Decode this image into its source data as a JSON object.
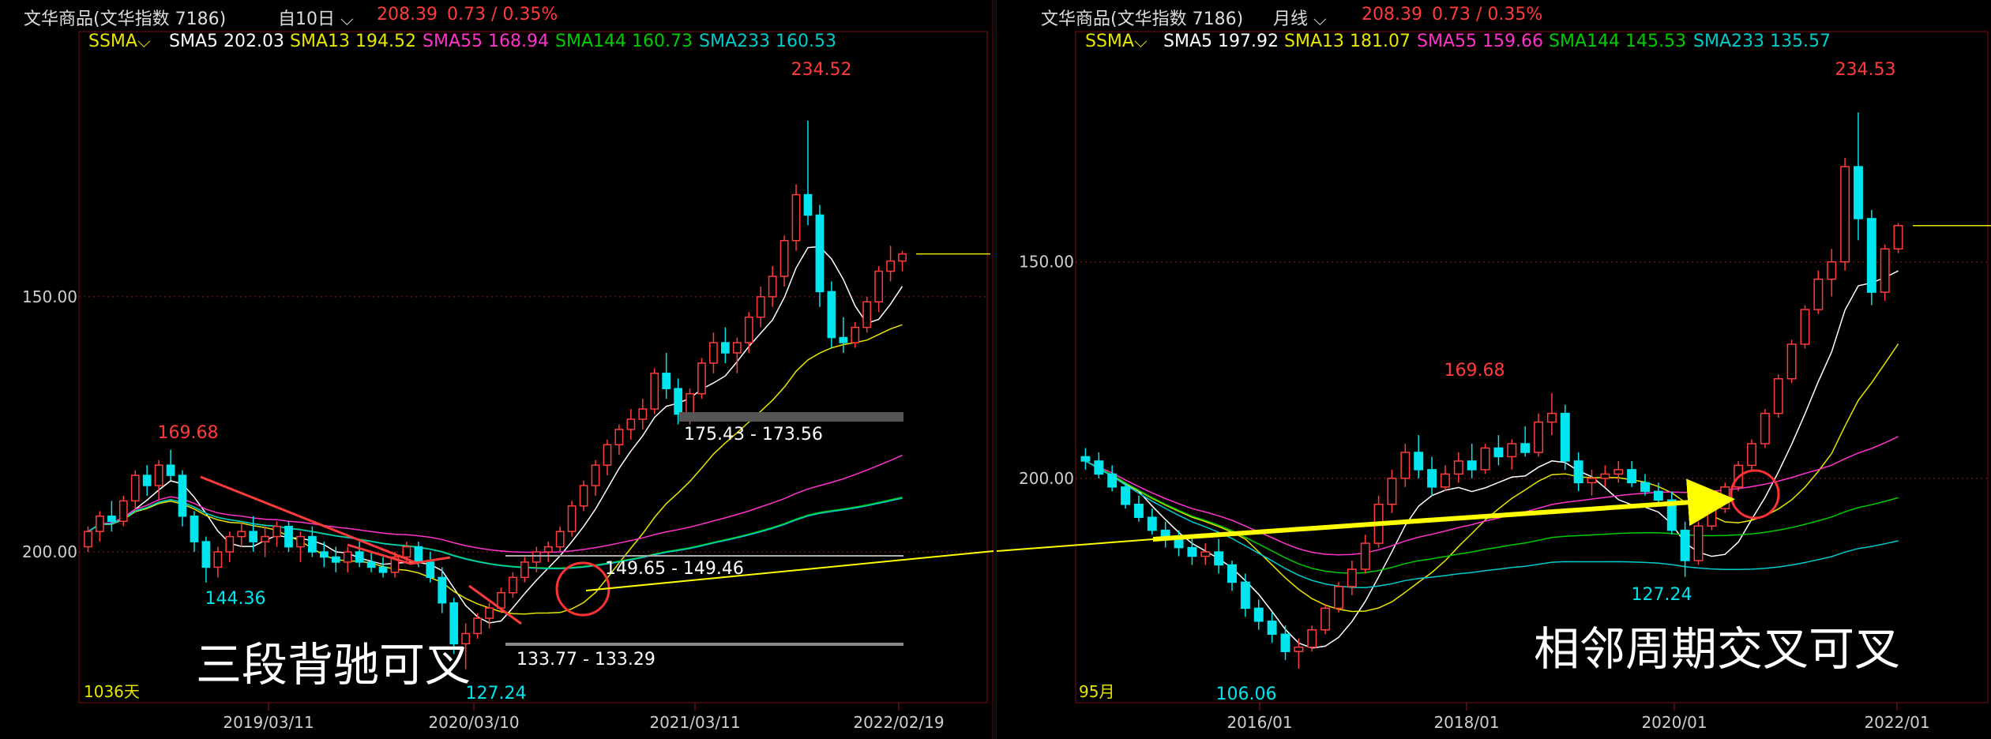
{
  "left": {
    "header": {
      "name": "文华商品(文华指数 7186)",
      "period": "自10日",
      "price": "208.39",
      "change": "0.73 / 0.35%"
    },
    "ma": {
      "label": "SSMA",
      "sma5": "SMA5 202.03",
      "sma13": "SMA13 194.52",
      "sma55": "SMA55 168.94",
      "sma144": "SMA144 160.73",
      "sma233": "SMA233 160.53"
    },
    "yticks": [
      "200.00",
      "150.00"
    ],
    "xticks": [
      "2019/03/11",
      "2020/03/10",
      "2021/03/11",
      "2022/02/19"
    ],
    "labels": {
      "high": "169.68",
      "low1": "144.36",
      "low2": "127.24",
      "peak": "234.52",
      "range1": "175.43 - 173.56",
      "range2": "149.65 - 149.46",
      "range3": "133.77 - 133.29",
      "count": "1036天"
    },
    "caption": "三段背驰可叉"
  },
  "right": {
    "header": {
      "name": "文华商品(文华指数 7186)",
      "period": "月线",
      "price": "208.39",
      "change": "0.73 / 0.35%"
    },
    "ma": {
      "label": "SSMA",
      "sma5": "SMA5 197.92",
      "sma13": "SMA13 181.07",
      "sma55": "SMA55 159.66",
      "sma144": "SMA144 145.53",
      "sma233": "SMA233 135.57"
    },
    "yticks": [
      "200.00",
      "150.00"
    ],
    "xticks": [
      "2016/01",
      "2018/01",
      "2020/01",
      "2022/01"
    ],
    "labels": {
      "high": "169.68",
      "low1": "106.06",
      "low2": "127.24",
      "peak": "234.53",
      "count": "95月"
    },
    "caption": "相邻周期交叉可叉"
  },
  "colors": {
    "up": "#ff3b3b",
    "down": "#00e5ee",
    "sma5": "#ffffff",
    "sma13": "#e6e600",
    "sma55": "#ff33cc",
    "sma144": "#00cc00",
    "sma233": "#00cccc",
    "arrow": "#ffff00"
  },
  "chart_data": [
    {
      "type": "candlestick",
      "period": "10-day",
      "x_ticks": [
        "2019/03/11",
        "2020/03/10",
        "2021/03/11",
        "2022/02/19"
      ],
      "y_ticks": [
        150.0,
        200.0
      ],
      "ylim": [
        122,
        245
      ],
      "series": [
        {
          "name": "SMA5",
          "last": 202.03
        },
        {
          "name": "SMA13",
          "last": 194.52
        },
        {
          "name": "SMA55",
          "last": 168.94
        },
        {
          "name": "SMA144",
          "last": 160.73
        },
        {
          "name": "SMA233",
          "last": 160.53
        }
      ],
      "candles": [
        [
          151,
          155,
          150,
          154
        ],
        [
          154,
          158,
          152,
          157
        ],
        [
          157,
          160,
          154,
          156
        ],
        [
          156,
          161,
          155,
          160
        ],
        [
          160,
          166,
          158,
          165
        ],
        [
          165,
          167,
          161,
          163
        ],
        [
          163,
          168,
          160,
          167
        ],
        [
          167,
          170,
          164,
          165
        ],
        [
          165,
          166,
          155,
          157
        ],
        [
          157,
          158,
          150,
          152
        ],
        [
          152,
          153,
          144,
          147
        ],
        [
          147,
          151,
          145,
          150
        ],
        [
          150,
          154,
          148,
          153
        ],
        [
          153,
          156,
          151,
          154
        ],
        [
          154,
          157,
          150,
          152
        ],
        [
          152,
          155,
          149,
          153
        ],
        [
          153,
          156,
          151,
          155
        ],
        [
          155,
          156,
          150,
          151
        ],
        [
          151,
          154,
          148,
          153
        ],
        [
          153,
          155,
          149,
          150
        ],
        [
          150,
          152,
          147,
          149
        ],
        [
          149,
          151,
          146,
          148
        ],
        [
          148,
          151,
          146,
          150
        ],
        [
          150,
          152,
          147,
          148
        ],
        [
          148,
          150,
          146,
          147
        ],
        [
          147,
          149,
          145,
          146
        ],
        [
          146,
          150,
          145,
          149
        ],
        [
          149,
          152,
          148,
          151
        ],
        [
          151,
          152,
          147,
          148
        ],
        [
          148,
          150,
          144,
          145
        ],
        [
          145,
          147,
          138,
          140
        ],
        [
          140,
          141,
          130,
          132
        ],
        [
          132,
          136,
          127,
          134
        ],
        [
          134,
          138,
          133,
          137
        ],
        [
          137,
          140,
          135,
          139
        ],
        [
          139,
          143,
          138,
          142
        ],
        [
          142,
          146,
          141,
          145
        ],
        [
          145,
          149,
          144,
          148
        ],
        [
          148,
          151,
          146,
          150
        ],
        [
          150,
          152,
          148,
          151
        ],
        [
          151,
          155,
          150,
          154
        ],
        [
          154,
          160,
          153,
          159
        ],
        [
          159,
          164,
          158,
          163
        ],
        [
          163,
          168,
          161,
          167
        ],
        [
          167,
          172,
          165,
          171
        ],
        [
          171,
          175,
          169,
          174
        ],
        [
          174,
          178,
          172,
          176
        ],
        [
          176,
          180,
          174,
          178
        ],
        [
          178,
          186,
          177,
          185
        ],
        [
          185,
          189,
          180,
          182
        ],
        [
          182,
          184,
          175,
          177
        ],
        [
          177,
          182,
          175,
          181
        ],
        [
          181,
          188,
          180,
          187
        ],
        [
          187,
          193,
          185,
          191
        ],
        [
          191,
          194,
          187,
          189
        ],
        [
          189,
          192,
          185,
          191
        ],
        [
          191,
          197,
          189,
          196
        ],
        [
          196,
          202,
          194,
          200
        ],
        [
          200,
          206,
          198,
          204
        ],
        [
          204,
          212,
          202,
          211
        ],
        [
          211,
          222,
          209,
          220
        ],
        [
          220,
          234.52,
          214,
          216
        ],
        [
          216,
          218,
          198,
          201
        ],
        [
          201,
          203,
          190,
          192
        ],
        [
          192,
          196,
          189,
          191
        ],
        [
          191,
          195,
          190,
          194
        ],
        [
          194,
          200,
          193,
          199
        ],
        [
          199,
          206,
          197,
          205
        ],
        [
          205,
          210,
          203,
          207
        ],
        [
          207,
          209,
          205,
          208.39
        ]
      ]
    },
    {
      "type": "candlestick",
      "period": "monthly",
      "x_ticks": [
        "2016/01",
        "2018/01",
        "2020/01",
        "2022/01"
      ],
      "y_ticks": [
        150.0,
        200.0
      ],
      "ylim": [
        100,
        245
      ],
      "series": [
        {
          "name": "SMA5",
          "last": 197.92
        },
        {
          "name": "SMA13",
          "last": 181.07
        },
        {
          "name": "SMA55",
          "last": 159.66
        },
        {
          "name": "SMA144",
          "last": 145.53
        },
        {
          "name": "SMA233",
          "last": 135.57
        }
      ],
      "candles": [
        [
          155,
          157,
          152,
          154
        ],
        [
          154,
          156,
          150,
          151
        ],
        [
          151,
          153,
          147,
          148
        ],
        [
          148,
          149,
          143,
          144
        ],
        [
          144,
          146,
          140,
          141
        ],
        [
          141,
          143,
          137,
          138
        ],
        [
          138,
          140,
          134,
          136
        ],
        [
          136,
          138,
          132,
          134
        ],
        [
          134,
          136,
          130,
          132
        ],
        [
          132,
          135,
          130,
          133
        ],
        [
          133,
          136,
          128,
          130
        ],
        [
          130,
          131,
          124,
          126
        ],
        [
          126,
          128,
          118,
          120
        ],
        [
          120,
          122,
          115,
          117
        ],
        [
          117,
          119,
          112,
          114
        ],
        [
          114,
          116,
          108,
          110
        ],
        [
          110,
          113,
          106.06,
          111
        ],
        [
          111,
          116,
          110,
          115
        ],
        [
          115,
          121,
          114,
          120
        ],
        [
          120,
          126,
          119,
          125
        ],
        [
          125,
          131,
          123,
          129
        ],
        [
          129,
          137,
          128,
          135
        ],
        [
          135,
          146,
          134,
          144
        ],
        [
          144,
          152,
          142,
          150
        ],
        [
          150,
          158,
          148,
          156
        ],
        [
          156,
          160,
          150,
          152
        ],
        [
          152,
          155,
          146,
          148
        ],
        [
          148,
          153,
          147,
          151
        ],
        [
          151,
          156,
          149,
          154
        ],
        [
          154,
          158,
          150,
          152
        ],
        [
          152,
          158,
          151,
          157
        ],
        [
          157,
          160,
          153,
          155
        ],
        [
          155,
          159,
          152,
          158
        ],
        [
          158,
          162,
          155,
          156
        ],
        [
          156,
          165,
          155,
          163
        ],
        [
          163,
          169.68,
          160,
          165
        ],
        [
          165,
          167,
          152,
          154
        ],
        [
          154,
          156,
          147,
          149
        ],
        [
          149,
          152,
          146,
          150
        ],
        [
          150,
          153,
          148,
          151
        ],
        [
          151,
          154,
          149,
          152
        ],
        [
          152,
          154,
          148,
          149
        ],
        [
          149,
          151,
          146,
          147
        ],
        [
          147,
          149,
          144,
          145
        ],
        [
          145,
          147,
          137,
          138
        ],
        [
          138,
          140,
          127.24,
          131
        ],
        [
          131,
          140,
          130,
          139
        ],
        [
          139,
          144,
          138,
          143
        ],
        [
          143,
          149,
          142,
          148
        ],
        [
          148,
          154,
          147,
          153
        ],
        [
          153,
          159,
          152,
          158
        ],
        [
          158,
          166,
          157,
          165
        ],
        [
          165,
          174,
          164,
          173
        ],
        [
          173,
          182,
          172,
          181
        ],
        [
          181,
          190,
          180,
          189
        ],
        [
          189,
          198,
          188,
          196
        ],
        [
          196,
          203,
          192,
          200
        ],
        [
          200,
          224,
          198,
          222
        ],
        [
          222,
          234.53,
          205,
          210
        ],
        [
          210,
          212,
          190,
          193
        ],
        [
          193,
          204,
          191,
          203
        ],
        [
          203,
          209,
          202,
          208.39
        ]
      ]
    }
  ]
}
